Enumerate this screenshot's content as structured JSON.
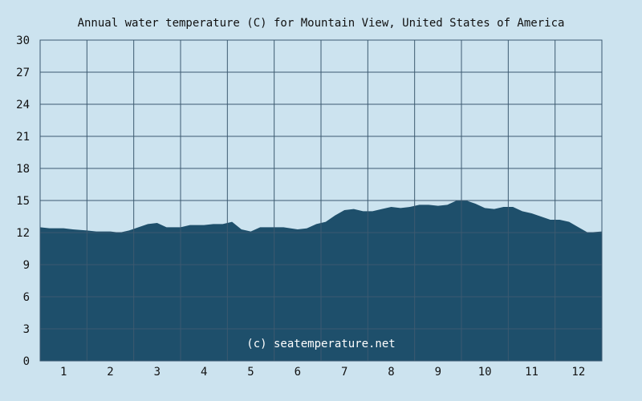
{
  "chart_data": {
    "type": "area",
    "title": "Annual water temperature (C) for Mountain View, United States of America",
    "xlabel": "",
    "ylabel": "",
    "ylim": [
      0,
      30
    ],
    "yticks": [
      "0",
      "3",
      "6",
      "9",
      "12",
      "15",
      "18",
      "21",
      "24",
      "27",
      "30"
    ],
    "xlim": [
      0.5,
      12.5
    ],
    "xticks": [
      "1",
      "2",
      "3",
      "4",
      "5",
      "6",
      "7",
      "8",
      "9",
      "10",
      "11",
      "12"
    ],
    "grid": true,
    "watermark": "(c) seatemperature.net",
    "series": [
      {
        "x": [
          0.5,
          0.7,
          1.0,
          1.2,
          1.5,
          1.7,
          2.0,
          2.2,
          2.4,
          2.6,
          2.8,
          3.0,
          3.2,
          3.5,
          3.7,
          4.0,
          4.2,
          4.4,
          4.6,
          4.8,
          5.0,
          5.2,
          5.5,
          5.7,
          6.0,
          6.2,
          6.4,
          6.6,
          6.8,
          7.0,
          7.2,
          7.4,
          7.6,
          7.8,
          8.0,
          8.2,
          8.4,
          8.6,
          8.8,
          9.0,
          9.2,
          9.4,
          9.6,
          9.8,
          10.0,
          10.2,
          10.4,
          10.6,
          10.8,
          11.0,
          11.2,
          11.4,
          11.6,
          11.8,
          12.0,
          12.2,
          12.5
        ],
        "values": [
          12.5,
          12.4,
          12.4,
          12.3,
          12.2,
          12.1,
          12.1,
          12.0,
          12.2,
          12.5,
          12.8,
          12.9,
          12.5,
          12.5,
          12.7,
          12.7,
          12.8,
          12.8,
          13.0,
          12.3,
          12.1,
          12.5,
          12.5,
          12.5,
          12.3,
          12.4,
          12.8,
          13.0,
          13.6,
          14.1,
          14.2,
          14.0,
          14.0,
          14.2,
          14.4,
          14.3,
          14.4,
          14.6,
          14.6,
          14.5,
          14.6,
          15.0,
          15.0,
          14.7,
          14.3,
          14.2,
          14.4,
          14.4,
          14.0,
          13.8,
          13.5,
          13.2,
          13.2,
          13.0,
          12.5,
          12.0,
          12.1
        ]
      }
    ],
    "colors": {
      "background": "#cce3ef",
      "area": "#1e4f6b",
      "grid": "#3c5a70",
      "text": "#111111",
      "watermark": "#ffffff"
    }
  }
}
